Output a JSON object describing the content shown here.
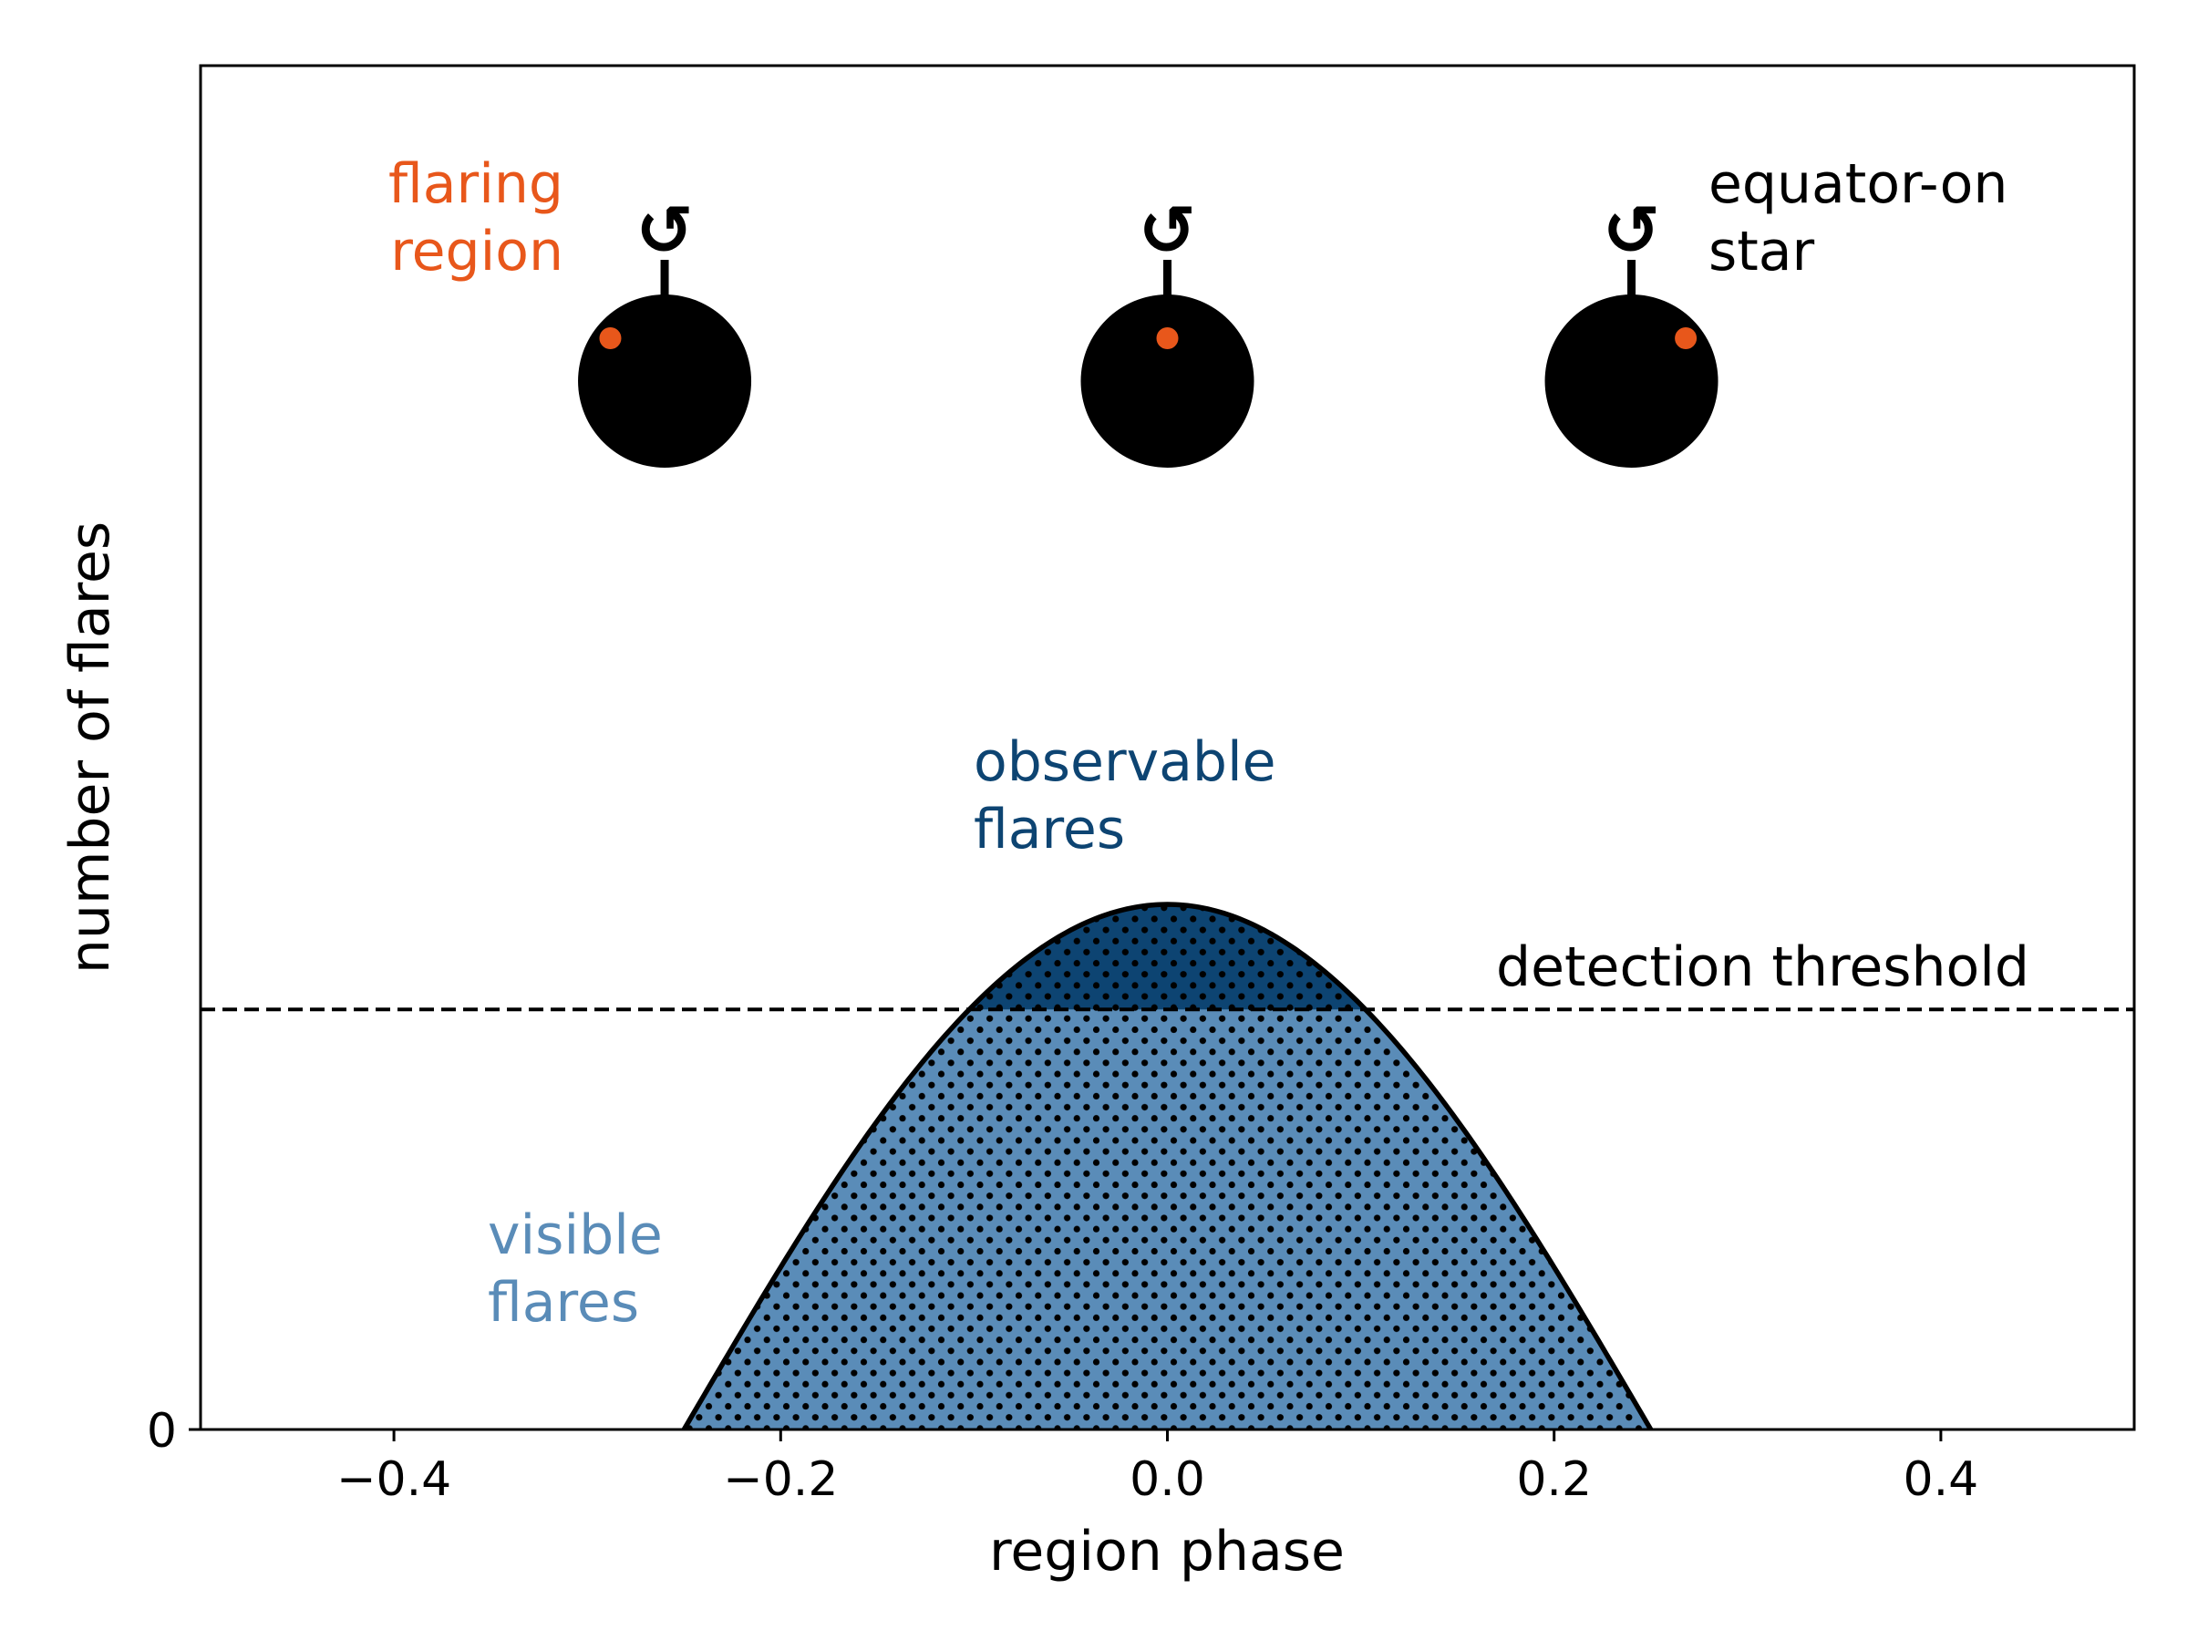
{
  "chart_data": {
    "type": "area",
    "xlabel": "region phase",
    "ylabel": "number of flares",
    "xlim": [
      -0.5,
      0.5
    ],
    "ylim": [
      0,
      1.0
    ],
    "x_ticks": [
      -0.4,
      -0.2,
      0.0,
      0.2,
      0.4
    ],
    "x_tick_labels": [
      "−0.4",
      "−0.2",
      "0.0",
      "0.2",
      "0.4"
    ],
    "y_ticks": [
      0
    ],
    "y_tick_labels": [
      "0"
    ],
    "grid": false,
    "curve": {
      "name": "visible flares",
      "function": "cos(2*pi*phase)",
      "x_range": [
        -0.25,
        0.25
      ],
      "peak_x": 0.0,
      "peak_y": 0.385
    },
    "threshold": {
      "label": "detection threshold",
      "y": 0.308,
      "style": "dashed"
    },
    "fills": [
      {
        "name": "visible flares",
        "color": "#5a8cb8",
        "hatch": "dots"
      },
      {
        "name": "observable flares",
        "color": "#0d4472",
        "hatch": "dots"
      }
    ],
    "annotations": {
      "flaring_region": [
        "flaring",
        "region"
      ],
      "equator_on_star": [
        "equator-on",
        "star"
      ],
      "observable_flares": [
        "observable",
        "flares"
      ],
      "visible_flares": [
        "visible",
        "flares"
      ],
      "rotation_symbol": "↺"
    },
    "star_icons": [
      {
        "x": -0.26,
        "spot_offset": -0.33
      },
      {
        "x": 0.0,
        "spot_offset": 0.0
      },
      {
        "x": 0.24,
        "spot_offset": 0.33
      }
    ],
    "colors": {
      "spot": "#e8571b",
      "visible": "#5a8cb8",
      "observable": "#0d4472",
      "star": "#000000"
    }
  }
}
